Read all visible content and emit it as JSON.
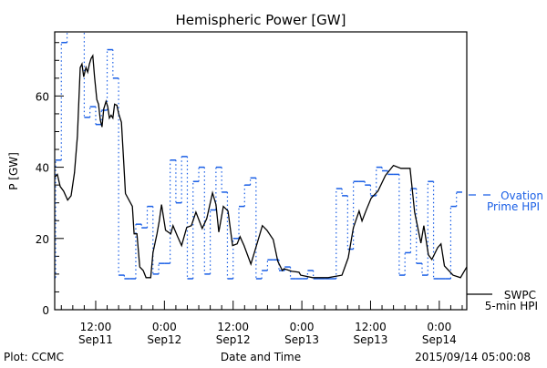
{
  "chart_data": {
    "type": "line",
    "title": "Hemispheric Power [GW]",
    "xlabel": "Date and Time",
    "ylabel": "P [GW]",
    "xunits": "hours since Sep11 0:00",
    "xlim": [
      4.84,
      76.8
    ],
    "ylim": [
      0,
      78
    ],
    "y_ticks": [
      0,
      20,
      40,
      60
    ],
    "y_minor_step": 5,
    "x_minor_step": 2,
    "x_ticks": [
      {
        "hour": 12,
        "time": "12:00",
        "date": "Sep11"
      },
      {
        "hour": 24,
        "time": "0:00",
        "date": "Sep12"
      },
      {
        "hour": 36,
        "time": "12:00",
        "date": "Sep12"
      },
      {
        "hour": 48,
        "time": "0:00",
        "date": "Sep13"
      },
      {
        "hour": 60,
        "time": "12:00",
        "date": "Sep13"
      },
      {
        "hour": 72,
        "time": "0:00",
        "date": "Sep14"
      }
    ],
    "colors": {
      "swpc": "#000000",
      "ovation": "#1a5fe6"
    },
    "series": [
      {
        "name": "SWPC 5-min HPI",
        "legend": [
          "SWPC",
          "5-min HPI"
        ],
        "style": "solid",
        "points": [
          [
            4.84,
            37.2
          ],
          [
            5.3,
            38
          ],
          [
            5.8,
            34.6
          ],
          [
            6.4,
            33.3
          ],
          [
            7.1,
            30.8
          ],
          [
            7.7,
            32
          ],
          [
            8.3,
            38.5
          ],
          [
            8.8,
            48.7
          ],
          [
            9.3,
            68
          ],
          [
            9.6,
            69
          ],
          [
            9.9,
            65.4
          ],
          [
            10.3,
            68
          ],
          [
            10.6,
            66.7
          ],
          [
            10.9,
            69
          ],
          [
            11.2,
            70.5
          ],
          [
            11.5,
            71.3
          ],
          [
            11.8,
            65.4
          ],
          [
            12.2,
            59
          ],
          [
            12.5,
            57.7
          ],
          [
            12.8,
            53.3
          ],
          [
            13.1,
            51.3
          ],
          [
            13.4,
            56.4
          ],
          [
            13.8,
            58.5
          ],
          [
            14.1,
            57
          ],
          [
            14.4,
            53.8
          ],
          [
            14.7,
            54.6
          ],
          [
            15.0,
            53.8
          ],
          [
            15.3,
            57.7
          ],
          [
            15.7,
            57.4
          ],
          [
            16.0,
            55.1
          ],
          [
            16.5,
            52.6
          ],
          [
            16.9,
            41
          ],
          [
            17.2,
            32.6
          ],
          [
            18.4,
            29
          ],
          [
            18.7,
            21.3
          ],
          [
            19.2,
            21.3
          ],
          [
            19.7,
            12
          ],
          [
            20.3,
            11
          ],
          [
            20.8,
            9
          ],
          [
            21.6,
            9
          ],
          [
            22.0,
            16
          ],
          [
            22.7,
            21.3
          ],
          [
            23.1,
            24.9
          ],
          [
            23.5,
            29.5
          ],
          [
            24.2,
            22.3
          ],
          [
            25.1,
            21.3
          ],
          [
            25.5,
            23.6
          ],
          [
            26.3,
            20.5
          ],
          [
            27.0,
            18
          ],
          [
            27.9,
            23.1
          ],
          [
            28.7,
            23.6
          ],
          [
            29.5,
            27.4
          ],
          [
            30.6,
            22.8
          ],
          [
            31.4,
            25.6
          ],
          [
            32.4,
            32.8
          ],
          [
            33.0,
            29.5
          ],
          [
            33.5,
            21.8
          ],
          [
            34.3,
            29
          ],
          [
            35.1,
            27.7
          ],
          [
            35.9,
            18
          ],
          [
            36.7,
            18.5
          ],
          [
            37.2,
            20.5
          ],
          [
            37.9,
            18
          ],
          [
            39.1,
            12.8
          ],
          [
            40.2,
            18.7
          ],
          [
            41.1,
            23.6
          ],
          [
            41.9,
            22.3
          ],
          [
            43.0,
            19.7
          ],
          [
            43.8,
            13.6
          ],
          [
            44.6,
            11
          ],
          [
            44.9,
            11.5
          ],
          [
            46.2,
            10.8
          ],
          [
            47.5,
            10.5
          ],
          [
            47.8,
            9.7
          ],
          [
            49.9,
            9
          ],
          [
            52.6,
            9
          ],
          [
            55,
            9.7
          ],
          [
            56.1,
            14.6
          ],
          [
            57.0,
            23
          ],
          [
            58,
            27.7
          ],
          [
            58.5,
            24.9
          ],
          [
            59.3,
            28.2
          ],
          [
            60.1,
            31.3
          ],
          [
            61.3,
            33.3
          ],
          [
            62.6,
            37.7
          ],
          [
            64.0,
            40.5
          ],
          [
            65.3,
            39.7
          ],
          [
            66.9,
            39.7
          ],
          [
            67.7,
            27.4
          ],
          [
            68.8,
            18.7
          ],
          [
            69.3,
            23.6
          ],
          [
            70.1,
            15.4
          ],
          [
            70.7,
            14.1
          ],
          [
            71.7,
            17.4
          ],
          [
            72.3,
            18.5
          ],
          [
            72.9,
            12.3
          ],
          [
            74.4,
            9.7
          ],
          [
            75.7,
            9
          ],
          [
            76.8,
            12
          ]
        ]
      },
      {
        "name": "Ovation Prime HPI",
        "legend": [
          "Ovation",
          "Prime HPI"
        ],
        "style": "hourly steps",
        "start_hour": 5,
        "values": [
          9,
          42,
          75,
          80,
          80,
          80,
          54,
          57,
          52,
          56,
          73,
          65,
          9.7,
          8.7,
          8.7,
          24,
          23,
          29,
          10,
          13,
          13,
          42,
          30,
          43,
          8.7,
          36,
          40,
          10,
          28,
          40,
          33,
          8.7,
          20,
          29,
          35,
          37,
          8.7,
          11,
          14,
          14,
          11,
          12,
          8.7,
          8.7,
          8.7,
          11,
          8.7,
          8.7,
          8.7,
          8.7,
          34,
          32,
          17,
          36,
          36,
          35,
          32,
          40,
          39,
          38,
          38,
          9.7,
          16,
          34,
          13,
          9.7,
          36,
          8.7,
          8.7,
          8.7,
          29,
          33
        ]
      }
    ]
  },
  "footer": {
    "left": "Plot: CCMC",
    "right": "2015/09/14 05:00:08"
  }
}
